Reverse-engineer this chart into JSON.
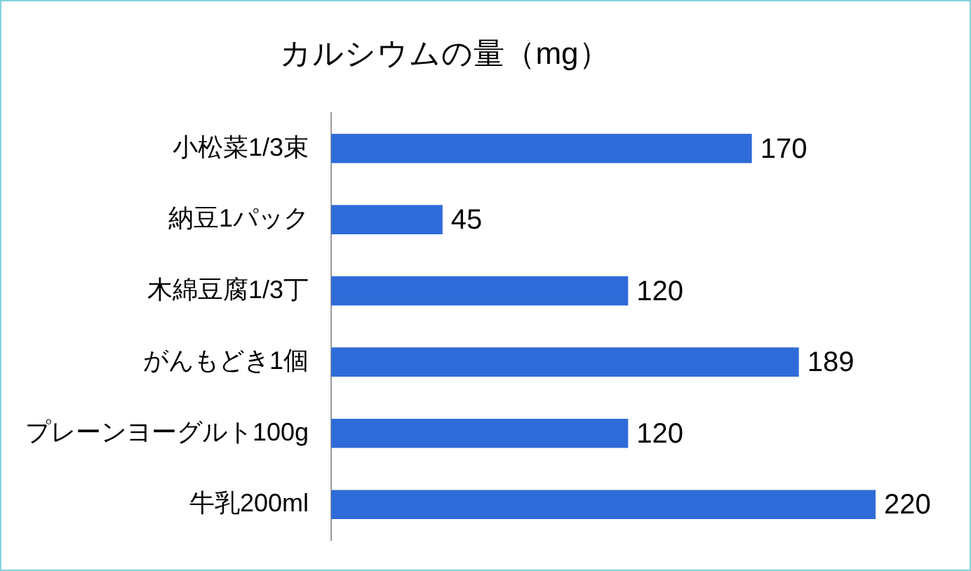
{
  "chart_data": {
    "type": "bar",
    "orientation": "horizontal",
    "title": "カルシウムの量（mg）",
    "categories": [
      "小松菜1/3束",
      "納豆1パック",
      "木綿豆腐1/3丁",
      "がんもどき1個",
      "プレーンヨーグルト100g",
      "牛乳200ml"
    ],
    "values": [
      170,
      45,
      120,
      189,
      120,
      220
    ],
    "color": "#2f6bd8",
    "data_labels": true
  }
}
